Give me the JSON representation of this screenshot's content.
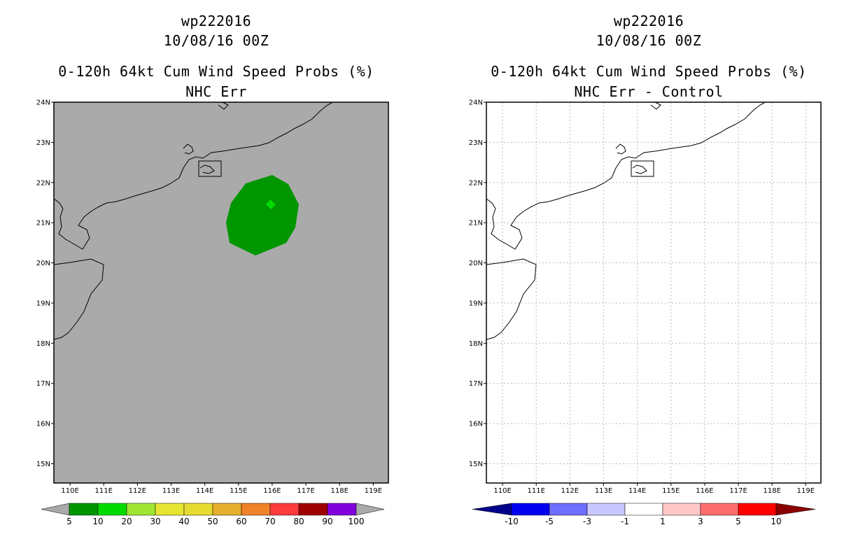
{
  "left": {
    "title_storm": "wp222016",
    "title_date": "10/08/16 00Z",
    "title_product": "0-120h 64kt Cum Wind Speed Probs (%)",
    "title_variant": "NHC Err",
    "background_color": "#aaaaaa",
    "colorbar": {
      "labels": [
        "5",
        "10",
        "20",
        "30",
        "40",
        "50",
        "60",
        "70",
        "80",
        "90",
        "100"
      ],
      "colors": [
        "#009600",
        "#00dc00",
        "#a0e632",
        "#e6e632",
        "#e6dc32",
        "#e6af2d",
        "#f08228",
        "#fa3c3c",
        "#a00000",
        "#8200dc"
      ],
      "end_color": "#aaaaaa"
    },
    "probability_areas": [
      {
        "name": "10 percent area",
        "color": "#009600"
      },
      {
        "name": "20 percent core",
        "color": "#00dc00"
      }
    ]
  },
  "right": {
    "title_storm": "wp222016",
    "title_date": "10/08/16 00Z",
    "title_product": "0-120h 64kt Cum Wind Speed Probs (%)",
    "title_variant": "NHC Err - Control",
    "background_color": "#ffffff",
    "colorbar": {
      "labels": [
        "-10",
        "-5",
        "-3",
        "-1",
        "1",
        "3",
        "5",
        "10"
      ],
      "colors": [
        "#0000f0",
        "#6e6eff",
        "#c8c8ff",
        "#ffffff",
        "#ffc8c8",
        "#ff6e6e",
        "#ff0000"
      ],
      "left_end_color": "#00008c",
      "right_end_color": "#8c0000"
    }
  },
  "axes": {
    "lat_labels": [
      "24N",
      "23N",
      "22N",
      "21N",
      "20N",
      "19N",
      "18N",
      "17N",
      "16N",
      "15N"
    ],
    "lat_values": [
      24,
      23,
      22,
      21,
      20,
      19,
      18,
      17,
      16,
      15
    ],
    "lon_labels": [
      "110E",
      "111E",
      "112E",
      "113E",
      "114E",
      "115E",
      "116E",
      "117E",
      "118E",
      "119E"
    ],
    "lon_values": [
      110,
      111,
      112,
      113,
      114,
      115,
      116,
      117,
      118,
      119
    ],
    "lon_range": [
      109.52,
      119.45
    ],
    "lat_range": [
      14.52,
      24
    ]
  }
}
